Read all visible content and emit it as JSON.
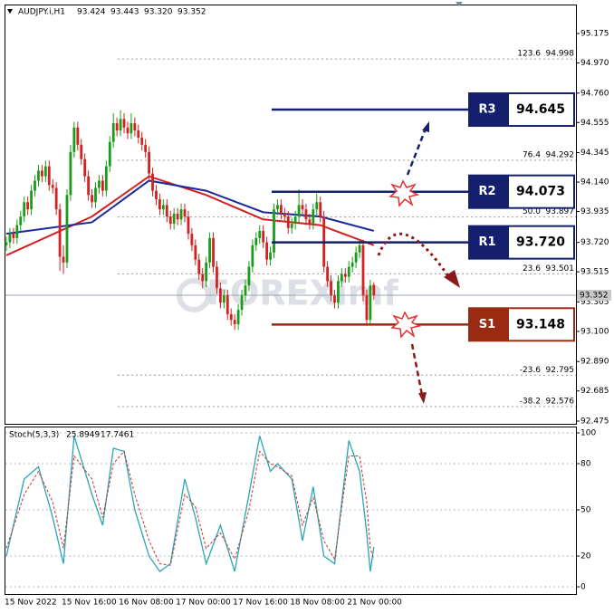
{
  "chart_data": [
    {
      "type": "candlestick",
      "title": "AUDJPY.i,H1",
      "last_ohlc_labels": [
        "93.424",
        "93.443",
        "93.320",
        "93.352"
      ],
      "watermark": "FOREXimf",
      "categories": [
        "15 Nov 2022",
        null,
        null,
        null,
        null,
        null,
        null,
        null,
        null,
        null,
        null,
        null,
        null,
        null,
        null,
        null,
        "15 Nov 16:00",
        null,
        null,
        null,
        null,
        null,
        null,
        null,
        null,
        null,
        null,
        null,
        null,
        null,
        null,
        null,
        "16 Nov 08:00",
        null,
        null,
        null,
        null,
        null,
        null,
        null,
        null,
        null,
        null,
        null,
        null,
        null,
        null,
        null,
        "17 Nov 00:00",
        null,
        null,
        null,
        null,
        null,
        null,
        null,
        null,
        null,
        null,
        null,
        null,
        null,
        null,
        null,
        "17 Nov 16:00",
        null,
        null,
        null,
        null,
        null,
        null,
        null,
        null,
        null,
        null,
        null,
        null,
        null,
        null,
        null,
        "18 Nov 08:00",
        null,
        null,
        null,
        null,
        null,
        null,
        null,
        null,
        null,
        null,
        null,
        null,
        null,
        null,
        null,
        "21 Nov 00:00",
        null,
        null,
        null,
        null,
        null,
        null,
        null
      ],
      "open": [
        93.7,
        93.72,
        93.78,
        93.75,
        93.84,
        93.9,
        94.0,
        93.95,
        94.08,
        94.15,
        94.22,
        94.18,
        94.25,
        94.12,
        94.1,
        93.95,
        93.62,
        93.58,
        94.05,
        94.35,
        94.52,
        94.4,
        94.3,
        94.18,
        94.05,
        94.0,
        94.1,
        94.15,
        94.08,
        94.25,
        94.42,
        94.55,
        94.5,
        94.58,
        94.52,
        94.48,
        94.55,
        94.5,
        94.45,
        94.4,
        94.35,
        94.2,
        94.08,
        94.02,
        93.95,
        93.98,
        93.9,
        93.85,
        93.92,
        93.88,
        93.95,
        93.9,
        93.78,
        93.7,
        93.6,
        93.5,
        93.45,
        93.58,
        93.75,
        93.55,
        93.4,
        93.3,
        93.35,
        93.22,
        93.18,
        93.15,
        93.25,
        93.35,
        93.42,
        93.55,
        93.7,
        93.75,
        93.8,
        93.72,
        93.6,
        93.65,
        93.95,
        93.98,
        93.92,
        93.9,
        93.82,
        93.85,
        93.9,
        93.98,
        93.95,
        93.88,
        93.85,
        93.95,
        94.0,
        93.9,
        93.55,
        93.45,
        93.35,
        93.3,
        93.45,
        93.5,
        93.48,
        93.55,
        93.58,
        93.65,
        93.7,
        93.35,
        93.18,
        93.424
      ],
      "high": [
        93.76,
        93.82,
        93.82,
        93.88,
        93.94,
        94.04,
        94.04,
        94.12,
        94.19,
        94.26,
        94.26,
        94.29,
        94.29,
        94.16,
        94.14,
        93.99,
        93.7,
        94.09,
        94.4,
        94.56,
        94.56,
        94.44,
        94.34,
        94.22,
        94.09,
        94.14,
        94.19,
        94.19,
        94.29,
        94.46,
        94.62,
        94.59,
        94.64,
        94.62,
        94.56,
        94.62,
        94.59,
        94.54,
        94.49,
        94.44,
        94.39,
        94.24,
        94.12,
        94.06,
        94.02,
        94.02,
        93.94,
        93.96,
        93.96,
        93.99,
        93.99,
        93.94,
        93.82,
        93.74,
        93.64,
        93.54,
        93.62,
        93.79,
        93.79,
        93.59,
        93.44,
        93.39,
        93.39,
        93.26,
        93.22,
        93.29,
        93.39,
        93.46,
        93.59,
        93.74,
        93.79,
        93.84,
        93.84,
        93.76,
        93.69,
        93.99,
        94.02,
        94.02,
        93.96,
        93.94,
        93.89,
        93.94,
        94.09,
        94.02,
        93.99,
        93.92,
        93.99,
        94.06,
        94.04,
        93.94,
        93.59,
        93.49,
        93.39,
        93.49,
        93.54,
        93.54,
        93.59,
        93.62,
        93.69,
        93.74,
        93.74,
        93.39,
        93.46,
        93.443
      ],
      "low": [
        93.66,
        93.68,
        93.71,
        93.71,
        93.8,
        93.86,
        93.91,
        93.91,
        94.04,
        94.11,
        94.14,
        94.14,
        94.08,
        94.06,
        93.91,
        93.52,
        93.5,
        93.54,
        94.01,
        94.31,
        94.36,
        94.26,
        94.14,
        94.01,
        93.96,
        93.96,
        94.06,
        94.04,
        94.04,
        94.21,
        94.38,
        94.46,
        94.46,
        94.48,
        94.44,
        94.44,
        94.46,
        94.41,
        94.36,
        94.31,
        94.16,
        94.04,
        93.98,
        93.91,
        93.91,
        93.86,
        93.81,
        93.81,
        93.84,
        93.84,
        93.86,
        93.74,
        93.66,
        93.56,
        93.46,
        93.4,
        93.41,
        93.54,
        93.51,
        93.36,
        93.26,
        93.26,
        93.18,
        93.14,
        93.11,
        93.11,
        93.21,
        93.31,
        93.38,
        93.51,
        93.66,
        93.71,
        93.68,
        93.56,
        93.56,
        93.61,
        93.91,
        93.88,
        93.86,
        93.78,
        93.78,
        93.81,
        93.86,
        93.91,
        93.84,
        93.81,
        93.81,
        93.91,
        93.86,
        93.51,
        93.41,
        93.31,
        93.26,
        93.26,
        93.41,
        93.44,
        93.44,
        93.51,
        93.54,
        93.61,
        93.31,
        93.14,
        93.14,
        93.32
      ],
      "close": [
        93.72,
        93.78,
        93.75,
        93.84,
        93.9,
        94.0,
        93.95,
        94.08,
        94.15,
        94.22,
        94.18,
        94.25,
        94.12,
        94.1,
        93.95,
        93.62,
        93.58,
        94.05,
        94.35,
        94.52,
        94.4,
        94.3,
        94.18,
        94.05,
        94.0,
        94.1,
        94.15,
        94.08,
        94.25,
        94.42,
        94.55,
        94.5,
        94.58,
        94.52,
        94.48,
        94.55,
        94.5,
        94.45,
        94.4,
        94.35,
        94.2,
        94.08,
        94.02,
        93.95,
        93.98,
        93.9,
        93.85,
        93.92,
        93.88,
        93.95,
        93.9,
        93.78,
        93.7,
        93.6,
        93.5,
        93.45,
        93.58,
        93.75,
        93.55,
        93.4,
        93.3,
        93.35,
        93.22,
        93.18,
        93.15,
        93.25,
        93.35,
        93.42,
        93.55,
        93.7,
        93.75,
        93.8,
        93.72,
        93.6,
        93.65,
        93.95,
        93.98,
        93.92,
        93.9,
        93.82,
        93.85,
        93.9,
        93.98,
        93.95,
        93.88,
        93.85,
        93.95,
        94.0,
        93.9,
        93.55,
        93.45,
        93.35,
        93.3,
        93.45,
        93.5,
        93.48,
        93.55,
        93.58,
        93.65,
        93.7,
        93.35,
        93.18,
        93.42,
        93.352
      ],
      "up_color": "#1a9c1a",
      "down_color": "#d42020",
      "ylim": [
        92.456,
        95.377
      ],
      "yticks": [
        {
          "value": 95.175,
          "label": "95.175"
        },
        {
          "value": 94.97,
          "label": "94.970"
        },
        {
          "value": 94.76,
          "label": "94.760"
        },
        {
          "value": 94.555,
          "label": "94.555"
        },
        {
          "value": 94.345,
          "label": "94.345"
        },
        {
          "value": 94.14,
          "label": "94.140"
        },
        {
          "value": 93.935,
          "label": "93.935"
        },
        {
          "value": 93.72,
          "label": "93.720"
        },
        {
          "value": 93.515,
          "label": "93.515"
        },
        {
          "value": 93.305,
          "label": "93.305"
        },
        {
          "value": 93.1,
          "label": "93.100"
        },
        {
          "value": 92.89,
          "label": "92.890"
        },
        {
          "value": 92.685,
          "label": "92.685"
        },
        {
          "value": 92.475,
          "label": "92.475"
        }
      ],
      "moving_averages": [
        {
          "color": "#d42020",
          "x": [
            0,
            24,
            40,
            56,
            72,
            88,
            103
          ],
          "values": [
            93.63,
            93.9,
            94.18,
            94.05,
            93.88,
            93.84,
            93.7
          ]
        },
        {
          "color": "#1a2a9c",
          "x": [
            0,
            24,
            40,
            56,
            72,
            88,
            103
          ],
          "values": [
            93.78,
            93.86,
            94.15,
            94.08,
            93.93,
            93.9,
            93.8
          ]
        }
      ],
      "fib_levels": [
        {
          "ratio": "123.6",
          "price": 94.998
        },
        {
          "ratio": "76.4",
          "price": 94.292
        },
        {
          "ratio": "50.0",
          "price": 93.897
        },
        {
          "ratio": "23.6",
          "price": 93.501
        },
        {
          "ratio": "-23.6",
          "price": 92.795
        },
        {
          "ratio": "-38.2",
          "price": 92.576
        }
      ],
      "levels": [
        {
          "name": "R3",
          "price": 94.645,
          "color": "#14206e"
        },
        {
          "name": "R2",
          "price": 94.073,
          "color": "#14206e"
        },
        {
          "name": "R1",
          "price": 93.72,
          "price_label": "93.720",
          "color": "#14206e"
        },
        {
          "name": "S1",
          "price": 93.148,
          "color": "#9b2a12"
        }
      ]
    },
    {
      "type": "line",
      "name": "Stoch(5,3,3)",
      "ylim": [
        -4.7,
        104.1
      ],
      "yticks": [
        0,
        20,
        50,
        80,
        100
      ],
      "series": [
        {
          "color": "#2aa5b5",
          "x": [
            0,
            5,
            9,
            13,
            16,
            19,
            24,
            27,
            30,
            33,
            36,
            40,
            43,
            46,
            50,
            53,
            56,
            60,
            64,
            68,
            71,
            74,
            76,
            80,
            83,
            86,
            89,
            92,
            96,
            99,
            101,
            102,
            103
          ],
          "values": [
            20,
            70,
            78,
            45,
            15,
            98,
            60,
            40,
            90,
            88,
            50,
            20,
            10,
            15,
            70,
            45,
            15,
            40,
            10,
            60,
            98,
            75,
            80,
            70,
            30,
            65,
            20,
            15,
            95,
            75,
            35,
            10,
            25.8949
          ]
        },
        {
          "color": "#c0392b",
          "x": [
            0,
            5,
            9,
            13,
            16,
            19,
            24,
            27,
            30,
            33,
            36,
            40,
            43,
            46,
            50,
            53,
            56,
            60,
            64,
            68,
            71,
            74,
            76,
            80,
            83,
            86,
            89,
            92,
            96,
            99,
            101,
            102,
            103
          ],
          "values": [
            25,
            60,
            75,
            55,
            25,
            85,
            70,
            45,
            80,
            88,
            60,
            30,
            15,
            14,
            60,
            52,
            25,
            35,
            18,
            50,
            88,
            80,
            78,
            72,
            40,
            58,
            30,
            18,
            85,
            85,
            55,
            25,
            17.7461
          ]
        }
      ]
    }
  ]
}
